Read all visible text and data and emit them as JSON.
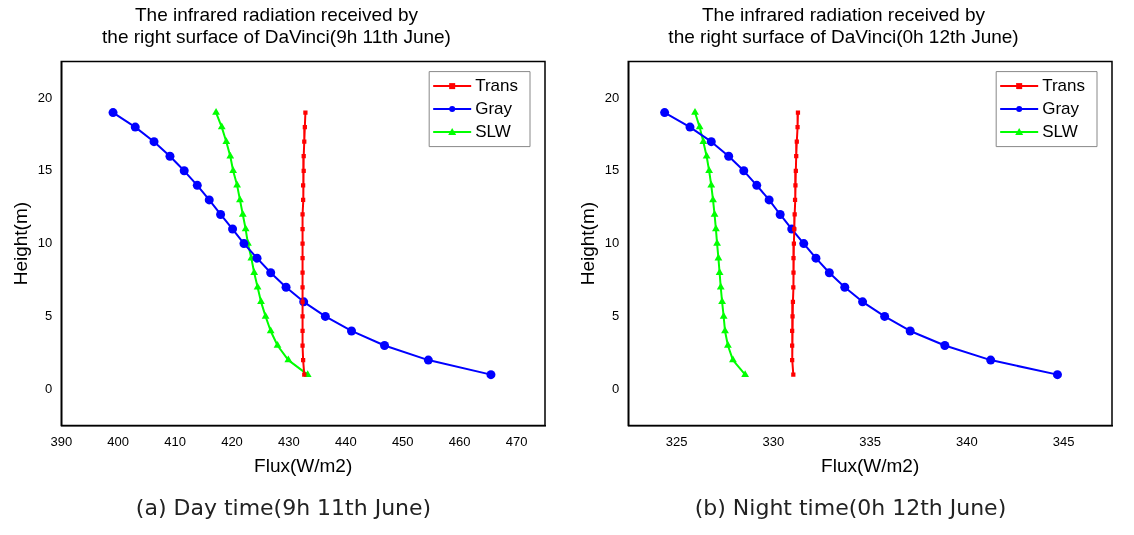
{
  "chart_data": [
    {
      "type": "line",
      "title": "The infrared radiation received by\nthe right surface of DaVinci(9h 11th June)",
      "xlabel": "Flux(W/m2)",
      "ylabel": "Height(m)",
      "annotations": [
        "(a) Day time(9h 11th June)"
      ],
      "xlim": [
        390,
        475
      ],
      "xticks": [
        390,
        400,
        410,
        420,
        430,
        440,
        450,
        460,
        470
      ],
      "ylim": [
        -2.5,
        22.5
      ],
      "yticks": [
        0,
        5,
        10,
        15,
        20
      ],
      "grid": false,
      "legend": "top right",
      "line_style": "solid",
      "series": [
        {
          "name": "Trans",
          "color": "#ff0000",
          "marker": "square",
          "x": [
            432.9,
            432.8,
            432.7,
            432.6,
            432.6,
            432.5,
            432.5,
            432.4,
            432.4,
            432.4,
            432.4,
            432.4,
            432.4,
            432.4,
            432.4,
            432.4,
            432.4,
            432.5,
            432.7
          ],
          "values": [
            19,
            18,
            17,
            16,
            15,
            14,
            13,
            12,
            11,
            10,
            9,
            8,
            7,
            6,
            5,
            4,
            3,
            2,
            1
          ]
        },
        {
          "name": "Gray",
          "color": "#0000ff",
          "marker": "circle",
          "x": [
            399.1,
            403.0,
            406.3,
            409.1,
            411.6,
            413.9,
            416.0,
            418.0,
            420.1,
            422.1,
            424.4,
            426.8,
            429.5,
            432.6,
            436.4,
            441.0,
            446.8,
            454.5,
            465.5
          ],
          "values": [
            19,
            18,
            17,
            16,
            15,
            14,
            13,
            12,
            11,
            10,
            9,
            8,
            7,
            6,
            5,
            4,
            3,
            2,
            1
          ]
        },
        {
          "name": "SLW",
          "color": "#00ff00",
          "marker": "triangle",
          "x": [
            417.2,
            418.2,
            419.0,
            419.7,
            420.2,
            420.9,
            421.4,
            421.9,
            422.4,
            422.8,
            423.4,
            423.9,
            424.5,
            425.1,
            425.9,
            426.8,
            428.0,
            429.9,
            433.3
          ],
          "values": [
            19,
            18,
            17,
            16,
            15,
            14,
            13,
            12,
            11,
            10,
            9,
            8,
            7,
            6,
            5,
            4,
            3,
            2,
            1
          ]
        }
      ]
    },
    {
      "type": "line",
      "title": "The infrared radiation received by\nthe right surface of DaVinci(0h 12th June)",
      "xlabel": "Flux(W/m2)",
      "ylabel": "Height(m)",
      "annotations": [
        "(b) Night time(0h 12th June)"
      ],
      "xlim": [
        322.5,
        347.5
      ],
      "xticks": [
        325,
        330,
        335,
        340,
        345
      ],
      "ylim": [
        -2.5,
        22.5
      ],
      "yticks": [
        0,
        5,
        10,
        15,
        20
      ],
      "grid": false,
      "legend": "top right",
      "line_style": "solid",
      "series": [
        {
          "name": "Trans",
          "color": "#ff0000",
          "marker": "square",
          "x": [
            331.27,
            331.25,
            331.21,
            331.18,
            331.16,
            331.14,
            331.12,
            331.1,
            331.08,
            331.06,
            331.04,
            331.04,
            331.03,
            331.01,
            330.99,
            330.97,
            330.97,
            330.97,
            331.03
          ],
          "values": [
            19,
            18,
            17,
            16,
            15,
            14,
            13,
            12,
            11,
            10,
            9,
            8,
            7,
            6,
            5,
            4,
            3,
            2,
            1
          ]
        },
        {
          "name": "Gray",
          "color": "#0000ff",
          "marker": "circle",
          "x": [
            324.38,
            325.69,
            326.79,
            327.69,
            328.47,
            329.14,
            329.78,
            330.35,
            330.95,
            331.57,
            332.2,
            332.89,
            333.69,
            334.61,
            335.75,
            337.07,
            338.86,
            341.23,
            344.68
          ],
          "values": [
            19,
            18,
            17,
            16,
            15,
            14,
            13,
            12,
            11,
            10,
            9,
            8,
            7,
            6,
            5,
            4,
            3,
            2,
            1
          ]
        },
        {
          "name": "SLW",
          "color": "#00ff00",
          "marker": "triangle",
          "x": [
            325.95,
            326.19,
            326.38,
            326.55,
            326.68,
            326.79,
            326.88,
            326.96,
            327.03,
            327.09,
            327.16,
            327.22,
            327.28,
            327.35,
            327.43,
            327.5,
            327.65,
            327.91,
            328.54
          ],
          "values": [
            19,
            18,
            17,
            16,
            15,
            14,
            13,
            12,
            11,
            10,
            9,
            8,
            7,
            6,
            5,
            4,
            3,
            2,
            1
          ]
        }
      ]
    }
  ]
}
